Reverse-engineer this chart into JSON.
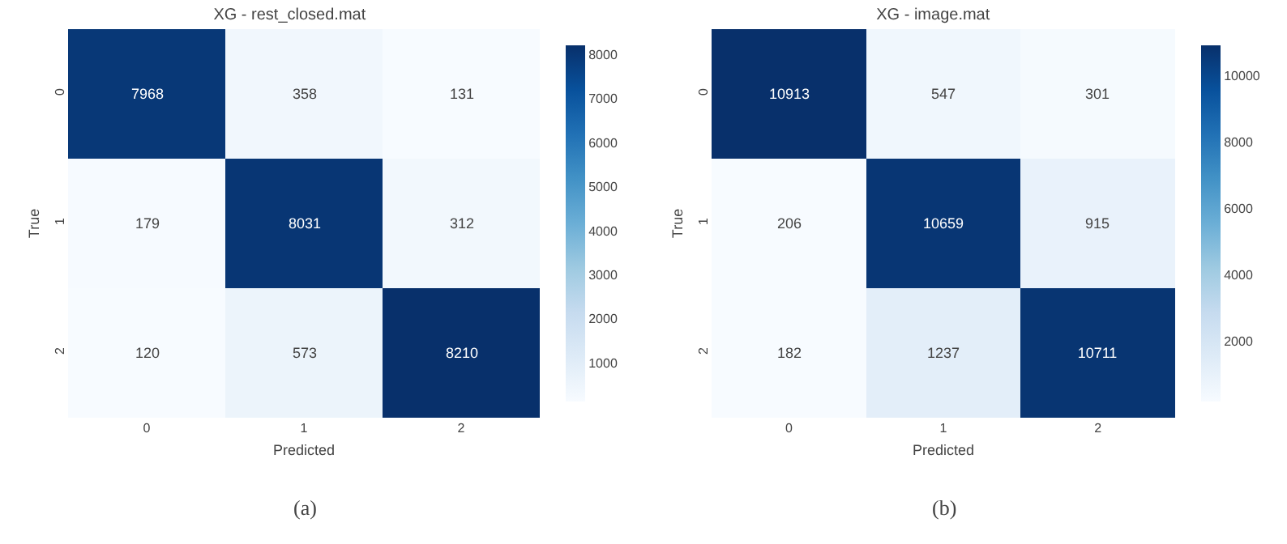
{
  "chart_data": [
    {
      "type": "heatmap",
      "title": "XG - rest_closed.mat",
      "xlabel": "Predicted",
      "ylabel": "True",
      "categories": [
        "0",
        "1",
        "2"
      ],
      "y_categories": [
        "0",
        "1",
        "2"
      ],
      "cells": [
        [
          7968,
          358,
          131
        ],
        [
          179,
          8031,
          312
        ],
        [
          120,
          573,
          8210
        ]
      ],
      "clim": [
        120,
        8210
      ],
      "cticks": [
        1000,
        2000,
        3000,
        4000,
        5000,
        6000,
        7000,
        8000
      ],
      "data_labels": true,
      "annotations": [
        "(a)"
      ]
    },
    {
      "type": "heatmap",
      "title": "XG - image.mat",
      "xlabel": "Predicted",
      "ylabel": "True",
      "categories": [
        "0",
        "1",
        "2"
      ],
      "y_categories": [
        "0",
        "1",
        "2"
      ],
      "cells": [
        [
          10913,
          547,
          301
        ],
        [
          206,
          10659,
          915
        ],
        [
          182,
          1237,
          10711
        ]
      ],
      "clim": [
        182,
        10913
      ],
      "cticks": [
        2000,
        4000,
        6000,
        8000,
        10000
      ],
      "data_labels": true,
      "annotations": [
        "(b)"
      ]
    }
  ]
}
